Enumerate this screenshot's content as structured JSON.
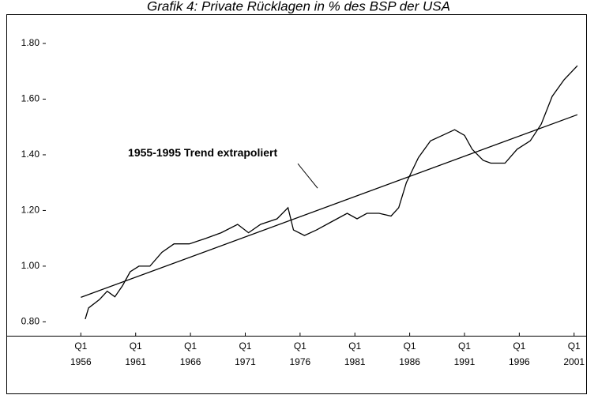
{
  "chart_data": {
    "type": "line",
    "title": "Grafik 4: Private Rücklagen in % des BSP der USA",
    "annotations": [
      {
        "text": "1955-1995 Trend extrapoliert",
        "x": 1977.6,
        "y": 1.28
      }
    ],
    "xlim": [
      1949.2,
      2002.1
    ],
    "ylim": [
      0.75,
      1.905
    ],
    "xticks": [
      {
        "value": 1956,
        "label": "Q1 1956"
      },
      {
        "value": 1961,
        "label": "Q1 1961"
      },
      {
        "value": 1966,
        "label": "Q1 1966"
      },
      {
        "value": 1971,
        "label": "Q1 1971"
      },
      {
        "value": 1976,
        "label": "Q1 1976"
      },
      {
        "value": 1981,
        "label": "Q1 1981"
      },
      {
        "value": 1986,
        "label": "Q1 1986"
      },
      {
        "value": 1991,
        "label": "Q1 1991"
      },
      {
        "value": 1996,
        "label": "Q1 1996"
      },
      {
        "value": 2001,
        "label": "Q1 2001"
      }
    ],
    "yticks": [
      {
        "value": 0.8,
        "label": "0.80"
      },
      {
        "value": 1.0,
        "label": "1.00"
      },
      {
        "value": 1.2,
        "label": "1.20"
      },
      {
        "value": 1.4,
        "label": "1.40"
      },
      {
        "value": 1.6,
        "label": "1.60"
      },
      {
        "value": 1.8,
        "label": "1.80"
      }
    ],
    "grid": false,
    "series": [
      {
        "color": "#000000",
        "x": [
          1956.4,
          1956.7,
          1957.7,
          1958.4,
          1959.1,
          1959.8,
          1960.5,
          1961.3,
          1962.3,
          1963.4,
          1964.5,
          1965.9,
          1967.4,
          1968.8,
          1970.3,
          1971.3,
          1972.4,
          1973.9,
          1974.9,
          1975.4,
          1976.4,
          1977.5,
          1978.9,
          1980.3,
          1981.2,
          1982.1,
          1983.2,
          1984.3,
          1985.0,
          1985.7,
          1986.8,
          1987.9,
          1989.0,
          1990.1,
          1991.0,
          1991.7,
          1992.7,
          1993.4,
          1994.7,
          1995.8,
          1997.0,
          1998.0,
          1999.0,
          2000.1,
          2001.3
        ],
        "values": [
          0.81,
          0.85,
          0.88,
          0.91,
          0.89,
          0.93,
          0.98,
          1.0,
          1.0,
          1.05,
          1.08,
          1.08,
          1.1,
          1.12,
          1.15,
          1.12,
          1.15,
          1.17,
          1.21,
          1.13,
          1.11,
          1.13,
          1.16,
          1.19,
          1.17,
          1.19,
          1.19,
          1.18,
          1.21,
          1.3,
          1.39,
          1.45,
          1.47,
          1.49,
          1.47,
          1.42,
          1.38,
          1.37,
          1.37,
          1.42,
          1.45,
          1.51,
          1.61,
          1.67,
          1.72
        ]
      },
      {
        "color": "#000000",
        "x": [
          1956.0,
          2001.3
        ],
        "values": [
          0.888,
          1.544
        ]
      }
    ]
  }
}
